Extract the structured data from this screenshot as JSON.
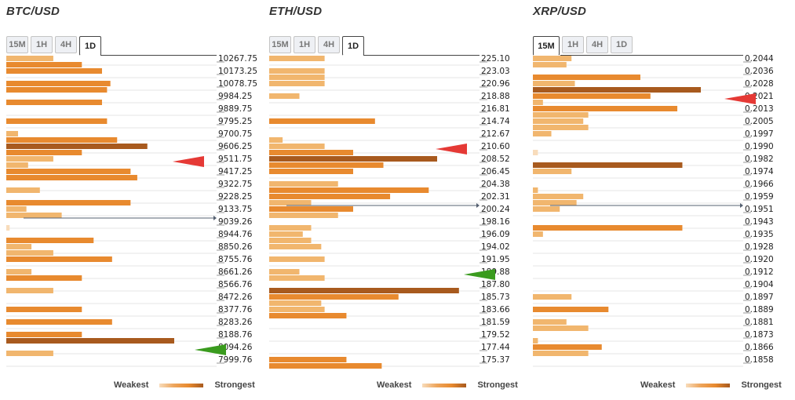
{
  "tabs": [
    "15M",
    "1H",
    "4H",
    "1D"
  ],
  "legend": {
    "weakest": "Weakest",
    "strongest": "Strongest"
  },
  "colors": {
    "weak": "#f8dcbb",
    "light": "#f1b66e",
    "mid": "#e88a2f",
    "strong": "#a85a1e",
    "resistance": "#e53935",
    "support": "#3a9b1e",
    "current": "#556070"
  },
  "chart_data": [
    {
      "type": "bar",
      "title": "BTC/USD",
      "active_tab": "1D",
      "price_labels": [
        "10267.75",
        "10173.25",
        "10078.75",
        "9984.25",
        "9889.75",
        "9795.25",
        "9700.75",
        "9606.25",
        "9511.75",
        "9417.25",
        "9322.75",
        "9228.25",
        "9133.75",
        "9039.26",
        "8944.76",
        "8850.26",
        "8755.76",
        "8661.26",
        "8566.76",
        "8472.26",
        "8377.76",
        "8283.26",
        "8188.76",
        "8094.26",
        "7999.76"
      ],
      "bars": [
        [
          0.28,
          1
        ],
        [
          0.45,
          2
        ],
        [
          0.57,
          2
        ],
        [
          0.0,
          0
        ],
        [
          0.62,
          2
        ],
        [
          0.6,
          2
        ],
        [
          0.0,
          0
        ],
        [
          0.57,
          2
        ],
        [
          0.0,
          0
        ],
        [
          0.0,
          0
        ],
        [
          0.6,
          2
        ],
        [
          0.0,
          0
        ],
        [
          0.07,
          1
        ],
        [
          0.66,
          2
        ],
        [
          0.84,
          3
        ],
        [
          0.45,
          2
        ],
        [
          0.28,
          1
        ],
        [
          0.13,
          1
        ],
        [
          0.74,
          2
        ],
        [
          0.78,
          2
        ],
        [
          0.0,
          0
        ],
        [
          0.2,
          1
        ],
        [
          0.0,
          0
        ],
        [
          0.74,
          2
        ],
        [
          0.12,
          1
        ],
        [
          0.33,
          1
        ],
        [
          0.0,
          0
        ],
        [
          0.02,
          0
        ],
        [
          0.0,
          0
        ],
        [
          0.52,
          2
        ],
        [
          0.15,
          1
        ],
        [
          0.28,
          1
        ],
        [
          0.63,
          2
        ],
        [
          0.0,
          0
        ],
        [
          0.15,
          1
        ],
        [
          0.45,
          2
        ],
        [
          0.0,
          0
        ],
        [
          0.28,
          1
        ],
        [
          0.0,
          0
        ],
        [
          0.0,
          0
        ],
        [
          0.45,
          2
        ],
        [
          0.0,
          0
        ],
        [
          0.63,
          2
        ],
        [
          0.0,
          0
        ],
        [
          0.45,
          2
        ],
        [
          1.0,
          3
        ],
        [
          0.0,
          0
        ],
        [
          0.28,
          1
        ]
      ],
      "current_price_row": 13.0,
      "resistance_row": 8.0,
      "support_row": 23.0
    },
    {
      "type": "bar",
      "title": "ETH/USD",
      "active_tab": "1D",
      "price_labels": [
        "225.10",
        "223.03",
        "220.96",
        "218.88",
        "216.81",
        "214.74",
        "212.67",
        "210.60",
        "208.52",
        "206.45",
        "204.38",
        "202.31",
        "200.24",
        "198.16",
        "196.09",
        "194.02",
        "191.95",
        "189.88",
        "187.80",
        "185.73",
        "183.66",
        "181.59",
        "179.52",
        "177.44",
        "175.37"
      ],
      "bars": [
        [
          0.33,
          1
        ],
        [
          0.0,
          0
        ],
        [
          0.33,
          1
        ],
        [
          0.33,
          1
        ],
        [
          0.33,
          1
        ],
        [
          0.0,
          0
        ],
        [
          0.18,
          1
        ],
        [
          0.0,
          0
        ],
        [
          0.0,
          0
        ],
        [
          0.0,
          0
        ],
        [
          0.63,
          2
        ],
        [
          0.0,
          0
        ],
        [
          0.0,
          0
        ],
        [
          0.08,
          1
        ],
        [
          0.33,
          1
        ],
        [
          0.5,
          2
        ],
        [
          1.0,
          3
        ],
        [
          0.68,
          2
        ],
        [
          0.5,
          2
        ],
        [
          0.0,
          0
        ],
        [
          0.41,
          1
        ],
        [
          0.95,
          2
        ],
        [
          0.72,
          2
        ],
        [
          0.25,
          1
        ],
        [
          0.5,
          2
        ],
        [
          0.41,
          1
        ],
        [
          0.0,
          0
        ],
        [
          0.25,
          1
        ],
        [
          0.2,
          1
        ],
        [
          0.25,
          1
        ],
        [
          0.31,
          1
        ],
        [
          0.0,
          0
        ],
        [
          0.33,
          1
        ],
        [
          0.0,
          0
        ],
        [
          0.18,
          1
        ],
        [
          0.33,
          1
        ],
        [
          0.0,
          0
        ],
        [
          1.13,
          3
        ],
        [
          0.77,
          2
        ],
        [
          0.31,
          1
        ],
        [
          0.33,
          1
        ],
        [
          0.46,
          2
        ],
        [
          0.0,
          0
        ],
        [
          0.0,
          0
        ],
        [
          0.0,
          0
        ],
        [
          0.0,
          0
        ],
        [
          0.0,
          0
        ],
        [
          0.0,
          0
        ],
        [
          0.46,
          2
        ],
        [
          0.67,
          2
        ]
      ],
      "current_price_row": 12.0,
      "resistance_row": 7.0,
      "support_row": 17.0
    },
    {
      "type": "bar",
      "title": "XRP/USD",
      "active_tab": "15M",
      "price_labels": [
        "0.2044",
        "0.2036",
        "0.2028",
        "0.2021",
        "0.2013",
        "0.2005",
        "0.1997",
        "0.1990",
        "0.1982",
        "0.1974",
        "0.1966",
        "0.1959",
        "0.1951",
        "0.1943",
        "0.1935",
        "0.1928",
        "0.1920",
        "0.1912",
        "0.1904",
        "0.1897",
        "0.1889",
        "0.1881",
        "0.1873",
        "0.1866",
        "0.1858"
      ],
      "bars": [
        [
          0.23,
          1
        ],
        [
          0.2,
          1
        ],
        [
          0.0,
          0
        ],
        [
          0.64,
          2
        ],
        [
          0.25,
          1
        ],
        [
          1.0,
          3
        ],
        [
          0.7,
          2
        ],
        [
          0.06,
          1
        ],
        [
          0.86,
          2
        ],
        [
          0.33,
          1
        ],
        [
          0.3,
          1
        ],
        [
          0.33,
          1
        ],
        [
          0.11,
          1
        ],
        [
          0.0,
          0
        ],
        [
          0.0,
          0
        ],
        [
          0.03,
          0
        ],
        [
          0.0,
          0
        ],
        [
          0.89,
          3
        ],
        [
          0.23,
          1
        ],
        [
          0.0,
          0
        ],
        [
          0.0,
          0
        ],
        [
          0.03,
          1
        ],
        [
          0.3,
          1
        ],
        [
          0.26,
          1
        ],
        [
          0.16,
          1
        ],
        [
          0.0,
          0
        ],
        [
          0.0,
          0
        ],
        [
          0.89,
          2
        ],
        [
          0.06,
          1
        ],
        [
          0.0,
          0
        ],
        [
          0.0,
          0
        ],
        [
          0.0,
          0
        ],
        [
          0.0,
          0
        ],
        [
          0.0,
          0
        ],
        [
          0.0,
          0
        ],
        [
          0.0,
          0
        ],
        [
          0.0,
          0
        ],
        [
          0.0,
          0
        ],
        [
          0.23,
          1
        ],
        [
          0.0,
          0
        ],
        [
          0.45,
          2
        ],
        [
          0.0,
          0
        ],
        [
          0.2,
          1
        ],
        [
          0.33,
          1
        ],
        [
          0.0,
          0
        ],
        [
          0.03,
          1
        ],
        [
          0.41,
          2
        ],
        [
          0.33,
          1
        ]
      ],
      "current_price_row": 12.0,
      "resistance_row": 3.0,
      "support_row": null
    }
  ]
}
